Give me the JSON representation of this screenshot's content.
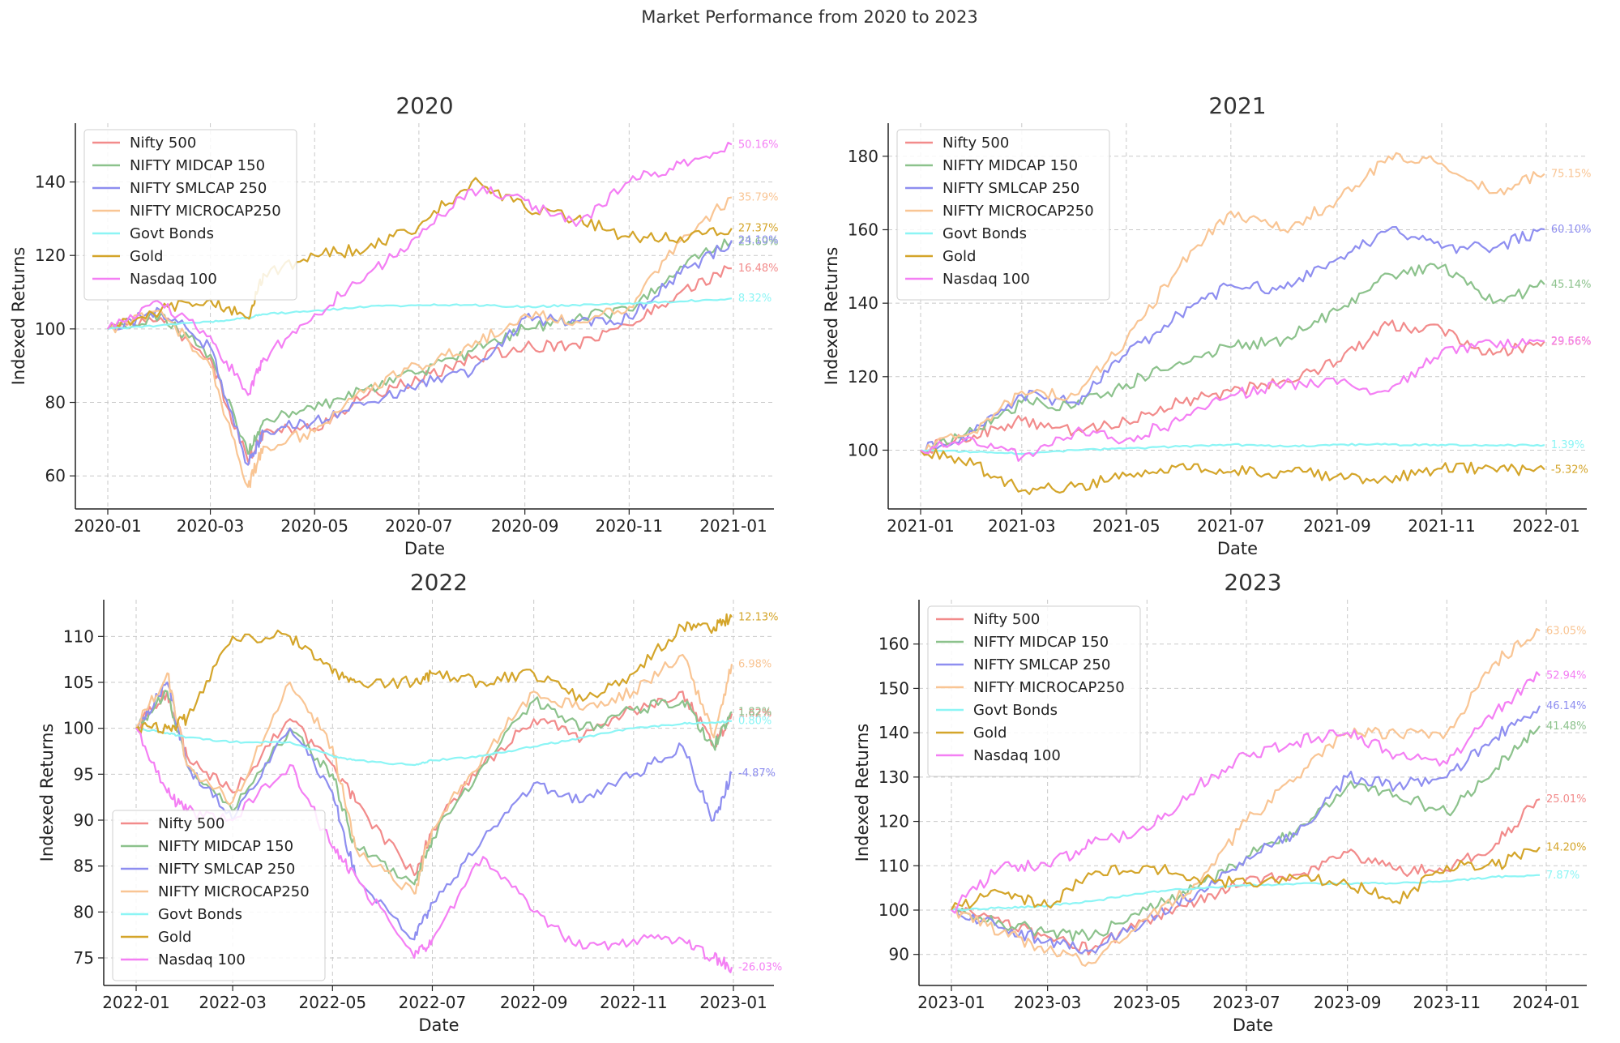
{
  "figure_title": "Market Performance from 2020 to 2023",
  "series_names": [
    "Nifty 500",
    "NIFTY MIDCAP 150",
    "NIFTY SMLCAP 250",
    "NIFTY MICROCAP250",
    "Govt Bonds",
    "Gold",
    "Nasdaq 100"
  ],
  "colors": {
    "Nifty 500": "#f28b8b",
    "NIFTY MIDCAP 150": "#8cc28c",
    "NIFTY SMLCAP 250": "#8e8ef0",
    "NIFTY MICROCAP250": "#f9c594",
    "Govt Bonds": "#8cf5f5",
    "Gold": "#d4a52a",
    "Nasdaq 100": "#f47ff4"
  },
  "chart_data": [
    {
      "type": "line",
      "title": "2020",
      "xlabel": "Date",
      "ylabel": "Indexed Returns",
      "x_ticks": [
        "2020-01",
        "2020-03",
        "2020-05",
        "2020-07",
        "2020-09",
        "2020-11",
        "2021-01"
      ],
      "ylim": [
        51,
        156
      ],
      "y_ticks": [
        60,
        80,
        100,
        120,
        140
      ],
      "grid": true,
      "legend_position": "top-left",
      "x_dates": [
        "2020-01-01",
        "2020-02-01",
        "2020-03-01",
        "2020-03-23",
        "2020-04-01",
        "2020-05-01",
        "2020-06-01",
        "2020-07-01",
        "2020-08-01",
        "2020-09-01",
        "2020-10-01",
        "2020-11-01",
        "2020-12-01",
        "2020-12-31"
      ],
      "series": [
        {
          "name": "Nifty 500",
          "values": [
            100,
            103,
            92,
            64,
            72,
            73,
            82,
            86,
            92,
            95,
            96,
            101,
            110,
            116.5
          ],
          "end_label": "16.48%"
        },
        {
          "name": "NIFTY MIDCAP 150",
          "values": [
            100,
            104,
            93,
            66,
            75,
            78,
            84,
            88,
            94,
            100,
            103,
            105,
            117,
            123.7
          ],
          "end_label": "23.69%"
        },
        {
          "name": "NIFTY SMLCAP 250",
          "values": [
            100,
            105,
            95,
            63,
            72,
            75,
            80,
            85,
            88,
            103,
            102,
            103,
            115,
            124.1
          ],
          "end_label": "24.10%"
        },
        {
          "name": "NIFTY MICROCAP250",
          "values": [
            100,
            105,
            90,
            57,
            68,
            72,
            84,
            90,
            95,
            104,
            102,
            106,
            124,
            135.8
          ],
          "end_label": "35.79%"
        },
        {
          "name": "Govt Bonds",
          "values": [
            100,
            101,
            102,
            103,
            104,
            105,
            106,
            106.5,
            106.5,
            106,
            106.5,
            107,
            107.5,
            108.3
          ],
          "end_label": "8.32%"
        },
        {
          "name": "Gold",
          "values": [
            100,
            105,
            108,
            103,
            115,
            120,
            122,
            128,
            140,
            133,
            130,
            125,
            125,
            127.4
          ],
          "end_label": "27.37%"
        },
        {
          "name": "Nasdaq 100",
          "values": [
            100,
            107,
            98,
            82,
            92,
            104,
            115,
            125,
            138,
            135,
            128,
            140,
            145,
            150.2
          ],
          "end_label": "50.16%"
        }
      ]
    },
    {
      "type": "line",
      "title": "2021",
      "xlabel": "Date",
      "ylabel": "Indexed Returns",
      "x_ticks": [
        "2021-01",
        "2021-03",
        "2021-05",
        "2021-07",
        "2021-09",
        "2021-11",
        "2022-01"
      ],
      "ylim": [
        84,
        189
      ],
      "y_ticks": [
        100,
        120,
        140,
        160,
        180
      ],
      "grid": true,
      "legend_position": "top-left",
      "x_dates": [
        "2021-01-01",
        "2021-02-01",
        "2021-03-01",
        "2021-04-01",
        "2021-05-01",
        "2021-06-01",
        "2021-07-01",
        "2021-08-01",
        "2021-09-01",
        "2021-10-01",
        "2021-11-01",
        "2021-12-01",
        "2021-12-31"
      ],
      "series": [
        {
          "name": "Nifty 500",
          "values": [
            100,
            104,
            108,
            105,
            108,
            113,
            116,
            119,
            124,
            134,
            133,
            126,
            129.6
          ],
          "end_label": "29.56%"
        },
        {
          "name": "NIFTY MIDCAP 150",
          "values": [
            100,
            105,
            113,
            112,
            118,
            124,
            128,
            130,
            138,
            148,
            150,
            140,
            145.1
          ],
          "end_label": "45.14%"
        },
        {
          "name": "NIFTY SMLCAP 250",
          "values": [
            100,
            105,
            115,
            113,
            126,
            137,
            145,
            144,
            152,
            160,
            155,
            155,
            160.1
          ],
          "end_label": "60.10%"
        },
        {
          "name": "NIFTY MICROCAP250",
          "values": [
            100,
            105,
            116,
            115,
            130,
            150,
            165,
            160,
            168,
            180,
            178,
            170,
            175.2
          ],
          "end_label": "75.15%"
        },
        {
          "name": "Govt Bonds",
          "values": [
            100,
            99.5,
            99,
            100,
            100.5,
            101,
            101.5,
            101,
            101.5,
            101.5,
            101.5,
            101.3,
            101.4
          ],
          "end_label": "1.39%"
        },
        {
          "name": "Gold",
          "values": [
            100,
            96,
            89,
            90,
            93,
            96,
            94,
            94,
            93,
            92,
            95,
            95,
            94.7
          ],
          "end_label": "-5.32%"
        },
        {
          "name": "Nasdaq 100",
          "values": [
            100,
            103,
            98,
            105,
            103,
            108,
            115,
            118,
            118,
            116,
            127,
            129,
            129.7
          ],
          "end_label": "29.66%"
        }
      ]
    },
    {
      "type": "line",
      "title": "2022",
      "xlabel": "Date",
      "ylabel": "Indexed Returns",
      "x_ticks": [
        "2022-01",
        "2022-03",
        "2022-05",
        "2022-07",
        "2022-09",
        "2022-11",
        "2023-01"
      ],
      "ylim": [
        72,
        114
      ],
      "y_ticks": [
        75,
        80,
        85,
        90,
        95,
        100,
        105,
        110
      ],
      "grid": true,
      "legend_position": "bottom-left",
      "x_dates": [
        "2022-01-01",
        "2022-01-20",
        "2022-02-01",
        "2022-03-01",
        "2022-04-05",
        "2022-05-01",
        "2022-05-15",
        "2022-06-20",
        "2022-07-01",
        "2022-08-01",
        "2022-09-01",
        "2022-10-01",
        "2022-11-01",
        "2022-12-01",
        "2022-12-20",
        "2022-12-31"
      ],
      "series": [
        {
          "name": "Nifty 500",
          "values": [
            100,
            104,
            97,
            93,
            101,
            96,
            92,
            84,
            89,
            96,
            101,
            99,
            102,
            104,
            98,
            101.6
          ],
          "end_label": "1.62%"
        },
        {
          "name": "NIFTY MIDCAP 150",
          "values": [
            100,
            104,
            96,
            91,
            100,
            95,
            87,
            83,
            88,
            96,
            103,
            100,
            102,
            103,
            98,
            101.8
          ],
          "end_label": "1.82%"
        },
        {
          "name": "NIFTY SMLCAP 250",
          "values": [
            100,
            105,
            96,
            90,
            100,
            93,
            84,
            77,
            81,
            88,
            94,
            92,
            95,
            98,
            90,
            95.1
          ],
          "end_label": "-4.87%"
        },
        {
          "name": "NIFTY MICROCAP250",
          "values": [
            100,
            106,
            96,
            92,
            105,
            98,
            87,
            82,
            89,
            97,
            104,
            102,
            104,
            108,
            99,
            107.0
          ],
          "end_label": "6.98%"
        },
        {
          "name": "Govt Bonds",
          "values": [
            100,
            99.5,
            99,
            98.5,
            98.5,
            97,
            96.5,
            96,
            96.5,
            97,
            98,
            99,
            100,
            100.5,
            100.6,
            100.8
          ],
          "end_label": "0.80%"
        },
        {
          "name": "Gold",
          "values": [
            100,
            100,
            101,
            110,
            110,
            106,
            105,
            105,
            106,
            105,
            106,
            103,
            106,
            111,
            111,
            112.1
          ],
          "end_label": "12.13%"
        },
        {
          "name": "Nasdaq 100",
          "values": [
            100,
            93,
            91,
            90,
            96,
            87,
            84,
            75,
            77,
            86,
            80,
            76,
            77,
            77,
            75,
            74.0
          ],
          "end_label": "-26.03%"
        }
      ]
    },
    {
      "type": "line",
      "title": "2023",
      "xlabel": "Date",
      "ylabel": "Indexed Returns",
      "x_ticks": [
        "2023-01",
        "2023-03",
        "2023-05",
        "2023-07",
        "2023-09",
        "2023-11",
        "2024-01"
      ],
      "ylim": [
        83,
        170
      ],
      "y_ticks": [
        90,
        100,
        110,
        120,
        130,
        140,
        150,
        160
      ],
      "grid": true,
      "legend_position": "top-left",
      "x_dates": [
        "2023-01-01",
        "2023-02-01",
        "2023-03-01",
        "2023-03-28",
        "2023-05-01",
        "2023-06-01",
        "2023-07-01",
        "2023-08-01",
        "2023-09-01",
        "2023-10-01",
        "2023-11-01",
        "2023-12-01",
        "2023-12-28"
      ],
      "series": [
        {
          "name": "Nifty 500",
          "values": [
            100,
            97,
            94,
            91,
            98,
            102,
            107,
            108,
            113,
            109,
            109,
            115,
            125.0
          ],
          "end_label": "25.01%"
        },
        {
          "name": "NIFTY MIDCAP 150",
          "values": [
            100,
            97,
            95,
            94,
            100,
            105,
            112,
            118,
            128,
            126,
            122,
            132,
            141.5
          ],
          "end_label": "41.48%"
        },
        {
          "name": "NIFTY SMLCAP 250",
          "values": [
            100,
            96,
            93,
            91,
            98,
            104,
            112,
            117,
            130,
            128,
            130,
            139,
            146.1
          ],
          "end_label": "46.14%"
        },
        {
          "name": "NIFTY MICROCAP250",
          "values": [
            100,
            95,
            91,
            88,
            98,
            106,
            120,
            130,
            140,
            140,
            140,
            156,
            163.0
          ],
          "end_label": "63.05%"
        },
        {
          "name": "Govt Bonds",
          "values": [
            100,
            100.5,
            101,
            102,
            104,
            105,
            105.5,
            106,
            106,
            106,
            106.5,
            107.5,
            107.9
          ],
          "end_label": "7.87%"
        },
        {
          "name": "Gold",
          "values": [
            100,
            104,
            101,
            108,
            110,
            107,
            106,
            107,
            106,
            102,
            110,
            110,
            114.2
          ],
          "end_label": "14.20%"
        },
        {
          "name": "Nasdaq 100",
          "values": [
            100,
            110,
            110,
            115,
            118,
            128,
            135,
            138,
            140,
            135,
            133,
            145,
            152.9
          ],
          "end_label": "52.94%"
        }
      ]
    }
  ]
}
